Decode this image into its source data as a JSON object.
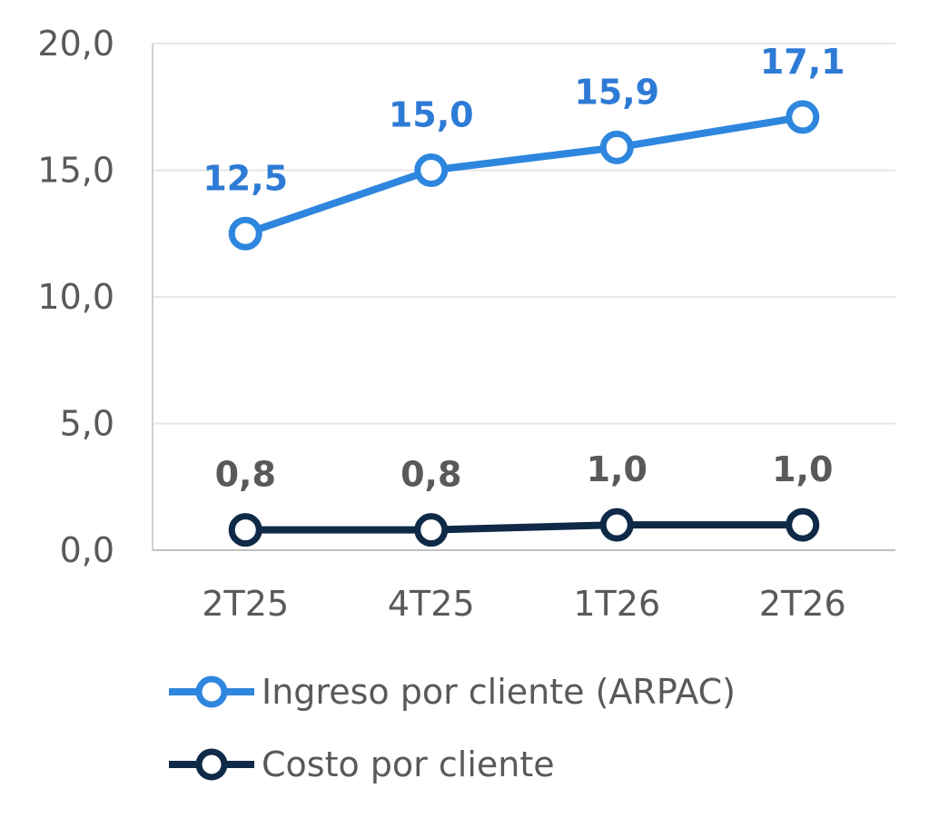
{
  "chart_data": {
    "type": "line",
    "categories": [
      "2T25",
      "4T25",
      "1T26",
      "2T26"
    ],
    "series": [
      {
        "name": "Ingreso por cliente (ARPAC)",
        "values": [
          12.5,
          15.0,
          15.9,
          17.1
        ],
        "labels": [
          "12,5",
          "15,0",
          "15,9",
          "17,1"
        ],
        "color": "#2e86de",
        "label_color": "#2e7bd6"
      },
      {
        "name": "Costo por cliente",
        "values": [
          0.8,
          0.8,
          1.0,
          1.0
        ],
        "labels": [
          "0,8",
          "0,8",
          "1,0",
          "1,0"
        ],
        "color": "#0f2a47",
        "label_color": "#595959"
      }
    ],
    "y_ticks": [
      "0,0",
      "5,0",
      "10,0",
      "15,0",
      "20,0"
    ],
    "ylim": [
      0,
      20
    ],
    "grid": true,
    "legend_position": "bottom"
  }
}
